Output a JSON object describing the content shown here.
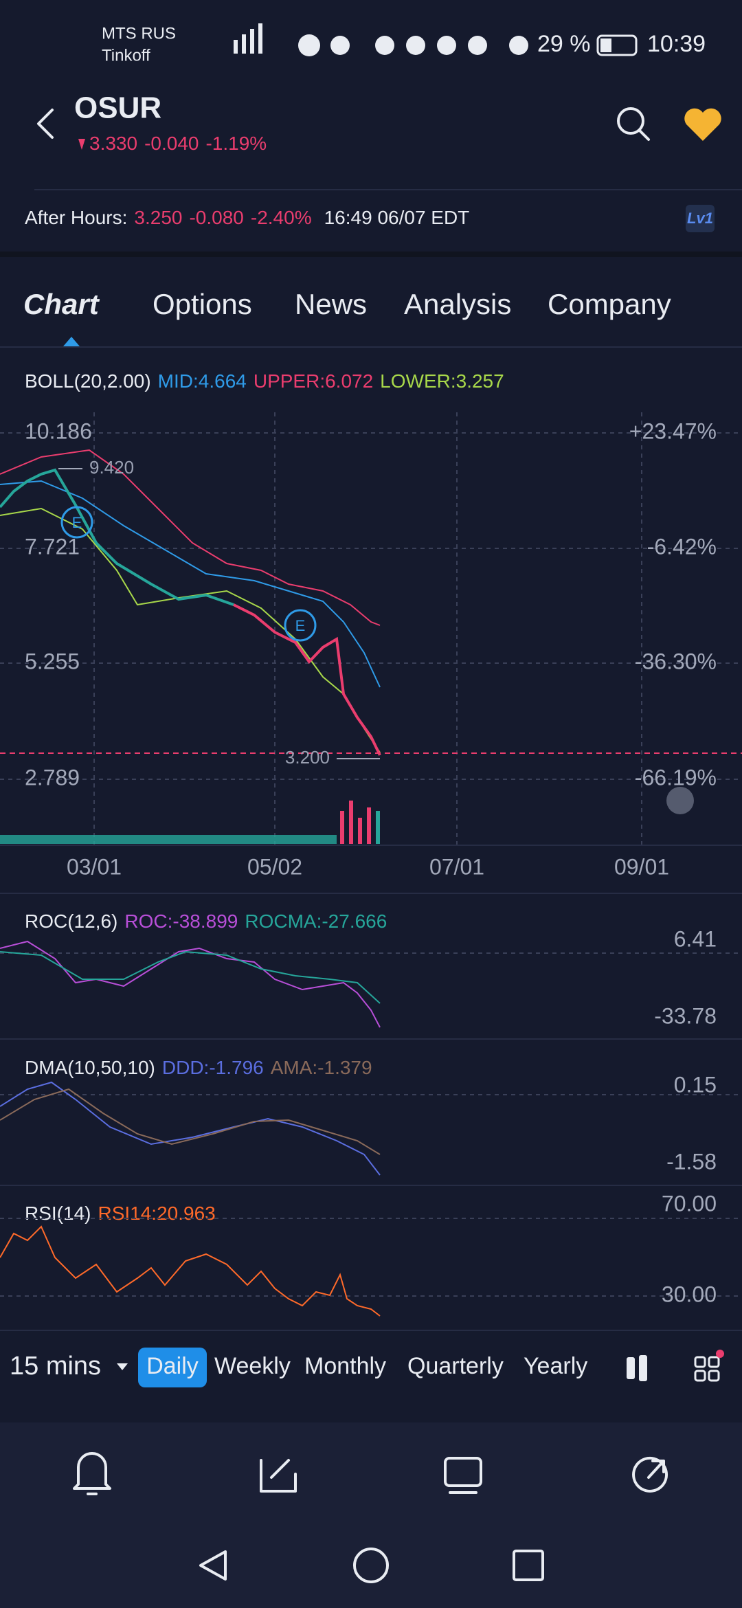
{
  "status_bar": {
    "carrier": "MTS RUS",
    "carrier2": "Tinkoff",
    "battery": "29 %",
    "time": "10:39"
  },
  "header": {
    "symbol": "OSUR",
    "price": "3.330",
    "change": "-0.040",
    "change_pct": "-1.19%"
  },
  "after_hours": {
    "label": "After Hours:",
    "price": "3.250",
    "change": "-0.080",
    "change_pct": "-2.40%",
    "time": "16:49 06/07 EDT",
    "badge": "Lv1"
  },
  "tabs": [
    "Chart",
    "Options",
    "News",
    "Analysis",
    "Company"
  ],
  "boll": {
    "label": "BOLL(20,2.00)",
    "mid": "MID:4.664",
    "upper": "UPPER:6.072",
    "lower": "LOWER:3.257"
  },
  "main_chart": {
    "price_labels": [
      "10.186",
      "7.721",
      "5.255",
      "2.789"
    ],
    "pct_labels": [
      "+23.47%",
      "-6.42%",
      "-36.30%",
      "-66.19%"
    ],
    "high_marker": "9.420",
    "low_marker": "3.200",
    "earnings_markers": [
      "E",
      "E"
    ],
    "dates": [
      "03/01",
      "05/02",
      "07/01",
      "09/01"
    ]
  },
  "roc": {
    "label": "ROC(12,6)",
    "roc": "ROC:-38.899",
    "rocma": "ROCMA:-27.666",
    "axis_labels": [
      "6.41",
      "-33.78"
    ]
  },
  "dma": {
    "label": "DMA(10,50,10)",
    "ddd": "DDD:-1.796",
    "ama": "AMA:-1.379",
    "axis_labels": [
      "0.15",
      "-1.58"
    ]
  },
  "rsi": {
    "label": "RSI(14)",
    "rsi": "RSI14:20.963",
    "axis_labels": [
      "70.00",
      "30.00"
    ]
  },
  "periods": {
    "interval": "15 mins",
    "options": [
      "Daily",
      "Weekly",
      "Monthly",
      "Quarterly",
      "Yearly"
    ]
  }
}
